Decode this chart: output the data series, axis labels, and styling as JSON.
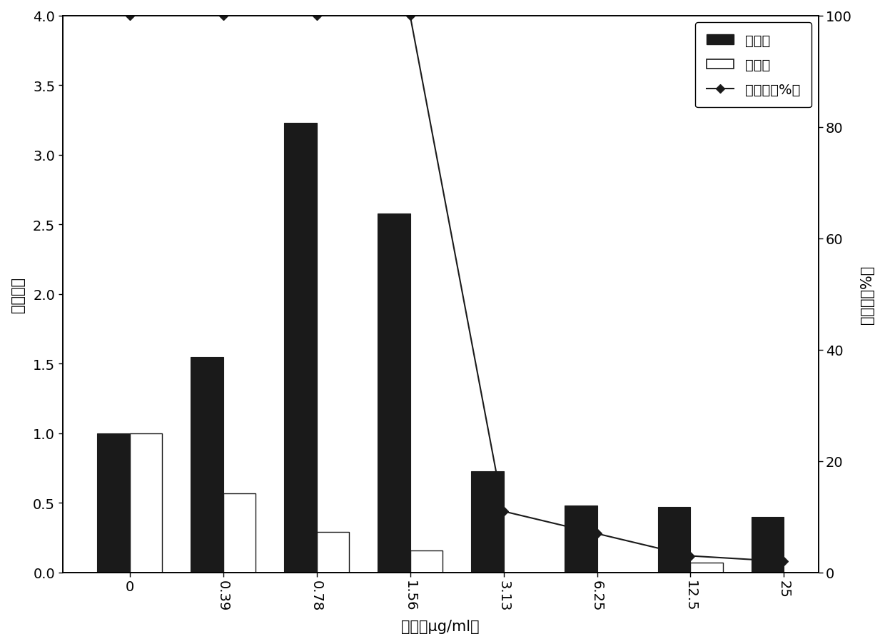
{
  "categories": [
    "0",
    "0.39",
    "0.78",
    "1.56",
    "3.13",
    "6.25",
    "12.5",
    "25"
  ],
  "medium_values": [
    1.0,
    1.55,
    3.23,
    2.58,
    0.73,
    0.48,
    0.47,
    0.4
  ],
  "wall_values": [
    1.0,
    0.57,
    0.29,
    0.16,
    null,
    null,
    0.07,
    null
  ],
  "growth_rate": [
    100,
    100,
    100,
    100,
    11,
    7,
    3,
    2
  ],
  "medium_color": "#1a1a1a",
  "wall_color": "#ffffff",
  "wall_edgecolor": "#1a1a1a",
  "line_color": "#1a1a1a",
  "ylabel_left": "相对活性",
  "ylabel_right": "生长率（%）",
  "xlabel": "浓度（μg/ml）",
  "legend_medium": "培养基",
  "legend_wall": "细胞壁",
  "legend_line": "生长率（%）",
  "ylim_left": [
    0,
    4.0
  ],
  "ylim_right": [
    0,
    100
  ],
  "bar_width": 0.35,
  "figsize": [
    12.4,
    9.03
  ],
  "dpi": 100,
  "tick_fontsize": 14,
  "label_fontsize": 15,
  "legend_fontsize": 14
}
